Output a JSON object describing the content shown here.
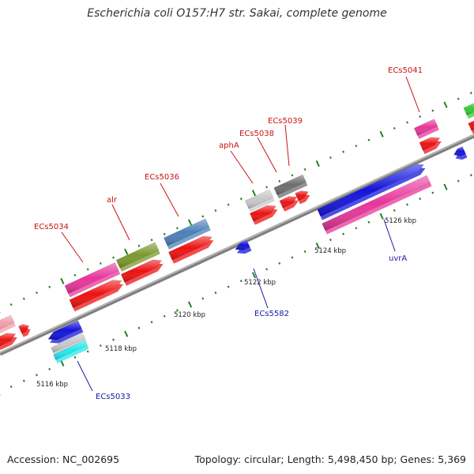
{
  "header": {
    "title": "Escherichia coli O157:H7 str. Sakai, complete genome"
  },
  "footer": {
    "accession": "Accession: NC_002695",
    "stats": "Topology: circular; Length: 5,498,450 bp; Genes: 5,369"
  },
  "axis": {
    "tick_labels": [
      "5116 kbp",
      "5118 kbp",
      "5120 kbp",
      "5122 kbp",
      "5124 kbp",
      "5126 kbp"
    ]
  },
  "gene_labels": {
    "ecs5041": "ECs5041",
    "ecs5039": "ECs5039",
    "ecs5038": "ECs5038",
    "apha": "aphA",
    "ecs5036": "ECs5036",
    "alr": "alr",
    "ecs5034": "ECs5034",
    "uvra": "uvrA",
    "ecs5582": "ECs5582",
    "ecs5033": "ECs5033"
  },
  "colors": {
    "backbone": "#8c8c8c",
    "tick": "#2a7a2a",
    "pink": "#e8359a",
    "red": "#ee1111",
    "olive": "#7a9a2a",
    "steel_blue": "#4a80b8",
    "blue": "#1414dd",
    "gray": "#c8c8c8",
    "dark_gray": "#6e6e6e",
    "cyan": "#22e8ee",
    "green": "#33cc33",
    "light_pink": "#f0a0a8",
    "label_red": "#cc1111",
    "label_blue": "#1a1aa0"
  }
}
